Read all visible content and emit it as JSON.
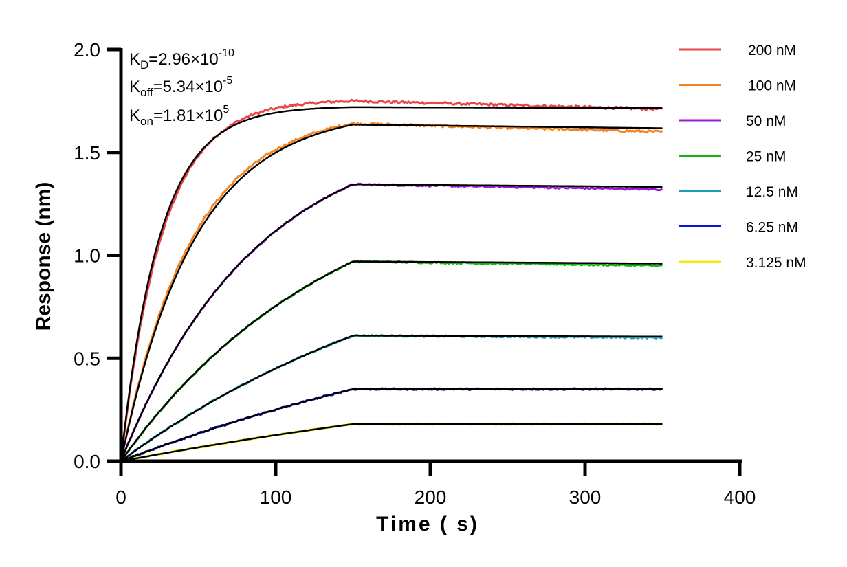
{
  "chart_data": {
    "type": "line",
    "title": "",
    "xlabel": "Time ( s)",
    "ylabel": "Response (nm)",
    "xlim": [
      0,
      400
    ],
    "ylim": [
      0,
      2.0
    ],
    "x_ticks": [
      0,
      100,
      200,
      300,
      400
    ],
    "x_tick_labels": [
      "0",
      "100",
      "200",
      "300",
      "400"
    ],
    "y_ticks": [
      0,
      0.5,
      1.0,
      1.5,
      2.0
    ],
    "y_tick_labels": [
      "0.0",
      "0.5",
      "1.0",
      "1.5",
      "2.0"
    ],
    "grid": false,
    "legend_position": "top-right",
    "association_end_s": 150,
    "dissociation_end_s": 350,
    "fit_color": "#000000",
    "annotations": {
      "kd": {
        "label": "K",
        "sub": "D",
        "value": "=2.96×10",
        "exp": "-10"
      },
      "koff": {
        "label": "K",
        "sub": "off",
        "value": "=5.34×10",
        "exp": "-5"
      },
      "kon": {
        "label": "K",
        "sub": "on",
        "value": "=1.81×10",
        "exp": "5"
      }
    },
    "series": [
      {
        "name": "200 nM",
        "color": "#e8474c",
        "fit_plateau": 1.72,
        "obs_rate": 0.04,
        "end_value": 1.71,
        "peak_value": 1.75,
        "raw_lag": 0.93
      },
      {
        "name": "100 nM",
        "color": "#f5831f",
        "fit_plateau": 1.635,
        "obs_rate": 0.021,
        "end_value": 1.6,
        "peak_value": 1.64,
        "raw_lag": 1.04
      },
      {
        "name": "50 nM",
        "color": "#9b1ad6",
        "fit_plateau": 1.345,
        "obs_rate": 0.0115,
        "end_value": 1.32,
        "peak_value": 1.345,
        "raw_lag": 1.0
      },
      {
        "name": "25 nM",
        "color": "#12b312",
        "fit_plateau": 0.97,
        "obs_rate": 0.0072,
        "end_value": 0.95,
        "peak_value": 0.97,
        "raw_lag": 1.0
      },
      {
        "name": "12.5 nM",
        "color": "#1e9bb0",
        "fit_plateau": 0.61,
        "obs_rate": 0.0045,
        "end_value": 0.6,
        "peak_value": 0.61,
        "raw_lag": 1.0
      },
      {
        "name": "6.25 nM",
        "color": "#0a14d8",
        "fit_plateau": 0.35,
        "obs_rate": 0.003,
        "end_value": 0.35,
        "peak_value": 0.35,
        "raw_lag": 1.0
      },
      {
        "name": "3.125 nM",
        "color": "#f2ea12",
        "fit_plateau": 0.18,
        "obs_rate": 0.0022,
        "end_value": 0.18,
        "peak_value": 0.18,
        "raw_lag": 1.0
      }
    ]
  }
}
